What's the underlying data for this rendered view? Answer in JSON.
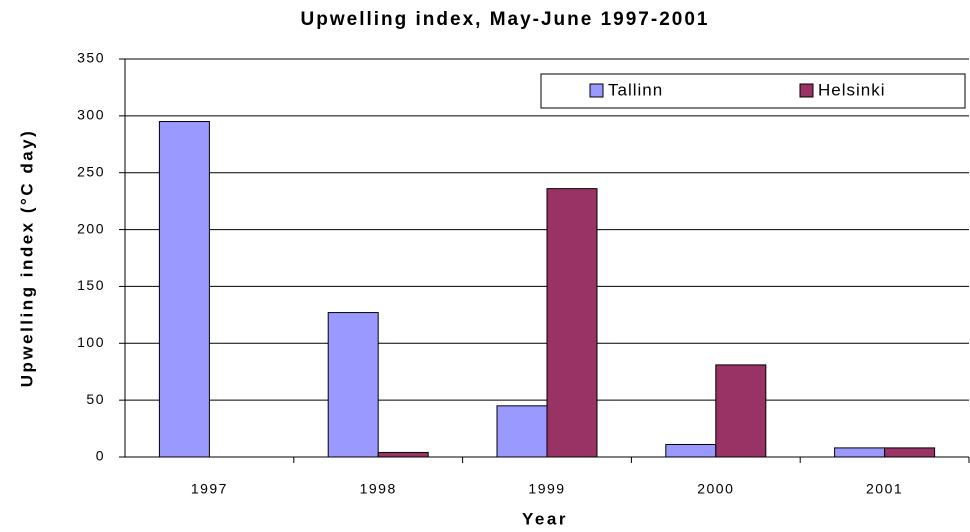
{
  "chart_data": {
    "type": "bar",
    "title": "Upwelling index, May-June 1997-2001",
    "x_label": "Year",
    "y_label": "Upwelling index (°C day)",
    "categories": [
      "1997",
      "1998",
      "1999",
      "2000",
      "2001"
    ],
    "series": [
      {
        "name": "Tallinn",
        "color": "#9999ff",
        "values": [
          295,
          127,
          45,
          11,
          8
        ]
      },
      {
        "name": "Helsinki",
        "color": "#993366",
        "values": [
          0,
          4,
          236,
          81,
          8
        ]
      }
    ],
    "ylim": [
      0,
      350
    ],
    "yticks": [
      0,
      50,
      100,
      150,
      200,
      250,
      300,
      350
    ],
    "grid": true,
    "legend": "top-right"
  }
}
